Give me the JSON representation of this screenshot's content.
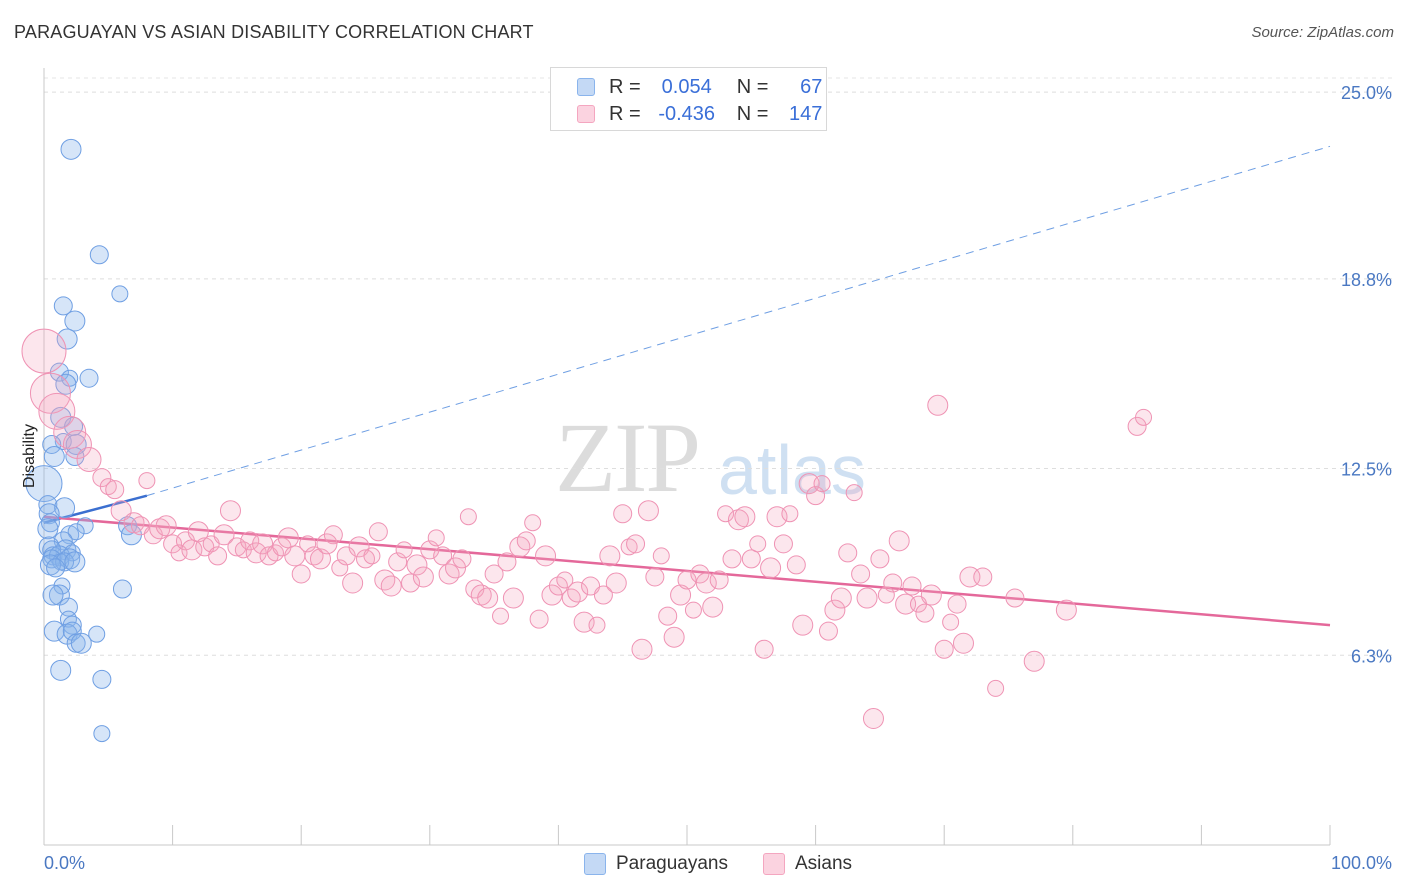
{
  "title": "PARAGUAYAN VS ASIAN DISABILITY CORRELATION CHART",
  "source": "Source: ZipAtlas.com",
  "watermark": {
    "zip": "ZIP",
    "atlas": "atlas"
  },
  "legend": {
    "rows": [
      {
        "r_label": "R =",
        "r_value": "0.054",
        "n_label": "N =",
        "n_value": "67",
        "color": "#8ab4ec"
      },
      {
        "r_label": "R =",
        "r_value": "-0.436",
        "n_label": "N =",
        "n_value": "147",
        "color": "#f4a6c0"
      }
    ]
  },
  "bottom_legend": [
    {
      "label": "Paraguayans",
      "color": "#8ab4ec"
    },
    {
      "label": "Asians",
      "color": "#f4a6c0"
    }
  ],
  "chart_data": {
    "type": "scatter",
    "title": "PARAGUAYAN VS ASIAN DISABILITY CORRELATION CHART",
    "xlabel": "",
    "ylabel": "Disability",
    "xlim": [
      0,
      100
    ],
    "ylim": [
      0,
      25.8
    ],
    "x_tick_labels": [
      "0.0%",
      "100.0%"
    ],
    "y_ticks": [
      6.3,
      12.5,
      18.8,
      25.0
    ],
    "y_tick_labels": [
      "6.3%",
      "12.5%",
      "18.8%",
      "25.0%"
    ],
    "grid": "horizontal dashed",
    "legend_position": "top-center",
    "series": [
      {
        "name": "Paraguayans",
        "color": "#5b8fe0",
        "trend": {
          "x": [
            0,
            8
          ],
          "y": [
            10.7,
            11.6
          ],
          "extended_to": [
            100,
            23.2
          ]
        },
        "points": [
          [
            2.1,
            23.1
          ],
          [
            4.3,
            19.6
          ],
          [
            5.9,
            18.3
          ],
          [
            1.5,
            17.9
          ],
          [
            2.4,
            17.4
          ],
          [
            1.8,
            16.8
          ],
          [
            1.2,
            15.7
          ],
          [
            2.0,
            15.5
          ],
          [
            3.5,
            15.5
          ],
          [
            1.7,
            15.3
          ],
          [
            1.3,
            14.2
          ],
          [
            2.3,
            13.9
          ],
          [
            1.5,
            13.4
          ],
          [
            0.6,
            13.3
          ],
          [
            2.5,
            13.3
          ],
          [
            0.8,
            12.9
          ],
          [
            2.4,
            12.9
          ],
          [
            0.0,
            12.0
          ],
          [
            0.3,
            11.3
          ],
          [
            1.6,
            11.2
          ],
          [
            0.4,
            11.0
          ],
          [
            0.5,
            10.7
          ],
          [
            3.2,
            10.6
          ],
          [
            6.5,
            10.6
          ],
          [
            6.8,
            10.3
          ],
          [
            0.3,
            10.5
          ],
          [
            2.0,
            10.3
          ],
          [
            2.5,
            10.4
          ],
          [
            1.5,
            10.1
          ],
          [
            0.4,
            9.9
          ],
          [
            1.7,
            9.8
          ],
          [
            0.6,
            9.8
          ],
          [
            2.2,
            9.7
          ],
          [
            0.7,
            9.6
          ],
          [
            1.2,
            9.6
          ],
          [
            2.0,
            9.5
          ],
          [
            0.6,
            9.5
          ],
          [
            1.3,
            9.4
          ],
          [
            1.6,
            9.4
          ],
          [
            2.4,
            9.4
          ],
          [
            0.5,
            9.3
          ],
          [
            0.9,
            9.2
          ],
          [
            1.4,
            8.6
          ],
          [
            6.1,
            8.5
          ],
          [
            1.2,
            8.3
          ],
          [
            0.7,
            8.3
          ],
          [
            1.9,
            7.9
          ],
          [
            1.9,
            7.5
          ],
          [
            2.2,
            7.3
          ],
          [
            0.8,
            7.1
          ],
          [
            1.8,
            7.0
          ],
          [
            2.2,
            7.1
          ],
          [
            4.1,
            7.0
          ],
          [
            2.5,
            6.7
          ],
          [
            2.9,
            6.7
          ],
          [
            1.3,
            5.8
          ],
          [
            4.5,
            5.5
          ],
          [
            4.5,
            3.7
          ]
        ]
      },
      {
        "name": "Asians",
        "color": "#e8749e",
        "trend": {
          "x": [
            0,
            100
          ],
          "y": [
            10.9,
            7.3
          ]
        },
        "points": [
          [
            0.0,
            16.4
          ],
          [
            0.5,
            15.0
          ],
          [
            1.0,
            14.4
          ],
          [
            2.0,
            13.7
          ],
          [
            2.6,
            13.3
          ],
          [
            3.5,
            12.8
          ],
          [
            4.5,
            12.2
          ],
          [
            5.0,
            11.9
          ],
          [
            5.5,
            11.8
          ],
          [
            6.0,
            11.1
          ],
          [
            7.0,
            10.7
          ],
          [
            7.5,
            10.6
          ],
          [
            8.0,
            12.1
          ],
          [
            8.5,
            10.3
          ],
          [
            9.0,
            10.5
          ],
          [
            9.5,
            10.6
          ],
          [
            10.0,
            10.0
          ],
          [
            10.5,
            9.7
          ],
          [
            11.0,
            10.1
          ],
          [
            11.5,
            9.8
          ],
          [
            12.0,
            10.4
          ],
          [
            12.5,
            9.9
          ],
          [
            13.0,
            10.0
          ],
          [
            13.5,
            9.6
          ],
          [
            14.0,
            10.3
          ],
          [
            14.5,
            11.1
          ],
          [
            15.0,
            9.9
          ],
          [
            15.5,
            9.8
          ],
          [
            16.0,
            10.1
          ],
          [
            16.5,
            9.7
          ],
          [
            17.0,
            10.0
          ],
          [
            17.5,
            9.6
          ],
          [
            18.0,
            9.7
          ],
          [
            18.5,
            9.9
          ],
          [
            19.0,
            10.2
          ],
          [
            19.5,
            9.6
          ],
          [
            20.0,
            9.0
          ],
          [
            20.5,
            10.0
          ],
          [
            21.0,
            9.6
          ],
          [
            21.5,
            9.5
          ],
          [
            22.0,
            10.0
          ],
          [
            22.5,
            10.3
          ],
          [
            23.0,
            9.2
          ],
          [
            23.5,
            9.6
          ],
          [
            24.0,
            8.7
          ],
          [
            24.5,
            9.9
          ],
          [
            25.0,
            9.5
          ],
          [
            25.5,
            9.6
          ],
          [
            26.0,
            10.4
          ],
          [
            26.5,
            8.8
          ],
          [
            27.0,
            8.6
          ],
          [
            27.5,
            9.4
          ],
          [
            28.0,
            9.8
          ],
          [
            28.5,
            8.7
          ],
          [
            29.0,
            9.3
          ],
          [
            29.5,
            8.9
          ],
          [
            30.0,
            9.8
          ],
          [
            30.5,
            10.2
          ],
          [
            31.0,
            9.6
          ],
          [
            31.5,
            9.0
          ],
          [
            32.0,
            9.2
          ],
          [
            32.5,
            9.5
          ],
          [
            33.0,
            10.9
          ],
          [
            33.5,
            8.5
          ],
          [
            34.0,
            8.3
          ],
          [
            34.5,
            8.2
          ],
          [
            35.0,
            9.0
          ],
          [
            35.5,
            7.6
          ],
          [
            36.0,
            9.4
          ],
          [
            36.5,
            8.2
          ],
          [
            37.0,
            9.9
          ],
          [
            37.5,
            10.1
          ],
          [
            38.0,
            10.7
          ],
          [
            38.5,
            7.5
          ],
          [
            39.0,
            9.6
          ],
          [
            39.5,
            8.3
          ],
          [
            40.0,
            8.6
          ],
          [
            40.5,
            8.8
          ],
          [
            41.0,
            8.2
          ],
          [
            41.5,
            8.4
          ],
          [
            42.0,
            7.4
          ],
          [
            42.5,
            8.6
          ],
          [
            43.0,
            7.3
          ],
          [
            43.5,
            8.3
          ],
          [
            44.0,
            9.6
          ],
          [
            44.5,
            8.7
          ],
          [
            45.0,
            11.0
          ],
          [
            45.5,
            9.9
          ],
          [
            46.0,
            10.0
          ],
          [
            46.5,
            6.5
          ],
          [
            47.0,
            11.1
          ],
          [
            47.5,
            8.9
          ],
          [
            48.0,
            9.6
          ],
          [
            48.5,
            7.6
          ],
          [
            49.0,
            6.9
          ],
          [
            49.5,
            8.3
          ],
          [
            50.0,
            8.8
          ],
          [
            50.5,
            7.8
          ],
          [
            51.0,
            9.0
          ],
          [
            51.5,
            8.7
          ],
          [
            52.0,
            7.9
          ],
          [
            52.5,
            8.8
          ],
          [
            53.0,
            11.0
          ],
          [
            53.5,
            9.5
          ],
          [
            54.0,
            10.8
          ],
          [
            54.5,
            10.9
          ],
          [
            55.0,
            9.5
          ],
          [
            55.5,
            10.0
          ],
          [
            56.0,
            6.5
          ],
          [
            56.5,
            9.2
          ],
          [
            57.0,
            10.9
          ],
          [
            57.5,
            10.0
          ],
          [
            58.0,
            11.0
          ],
          [
            58.5,
            9.3
          ],
          [
            59.0,
            7.3
          ],
          [
            59.5,
            12.0
          ],
          [
            60.0,
            11.6
          ],
          [
            60.5,
            12.0
          ],
          [
            61.0,
            7.1
          ],
          [
            61.5,
            7.8
          ],
          [
            62.0,
            8.2
          ],
          [
            62.5,
            9.7
          ],
          [
            63.0,
            11.7
          ],
          [
            63.5,
            9.0
          ],
          [
            64.0,
            8.2
          ],
          [
            64.5,
            4.2
          ],
          [
            65.0,
            9.5
          ],
          [
            65.5,
            8.3
          ],
          [
            66.0,
            8.7
          ],
          [
            66.5,
            10.1
          ],
          [
            67.0,
            8.0
          ],
          [
            67.5,
            8.6
          ],
          [
            68.0,
            8.0
          ],
          [
            68.5,
            7.7
          ],
          [
            69.0,
            8.3
          ],
          [
            69.5,
            14.6
          ],
          [
            70.0,
            6.5
          ],
          [
            70.5,
            7.4
          ],
          [
            71.0,
            8.0
          ],
          [
            71.5,
            6.7
          ],
          [
            72.0,
            8.9
          ],
          [
            73.0,
            8.9
          ],
          [
            74.0,
            5.2
          ],
          [
            75.5,
            8.2
          ],
          [
            77.0,
            6.1
          ],
          [
            79.5,
            7.8
          ],
          [
            85.0,
            13.9
          ],
          [
            85.5,
            14.2
          ]
        ]
      }
    ]
  }
}
